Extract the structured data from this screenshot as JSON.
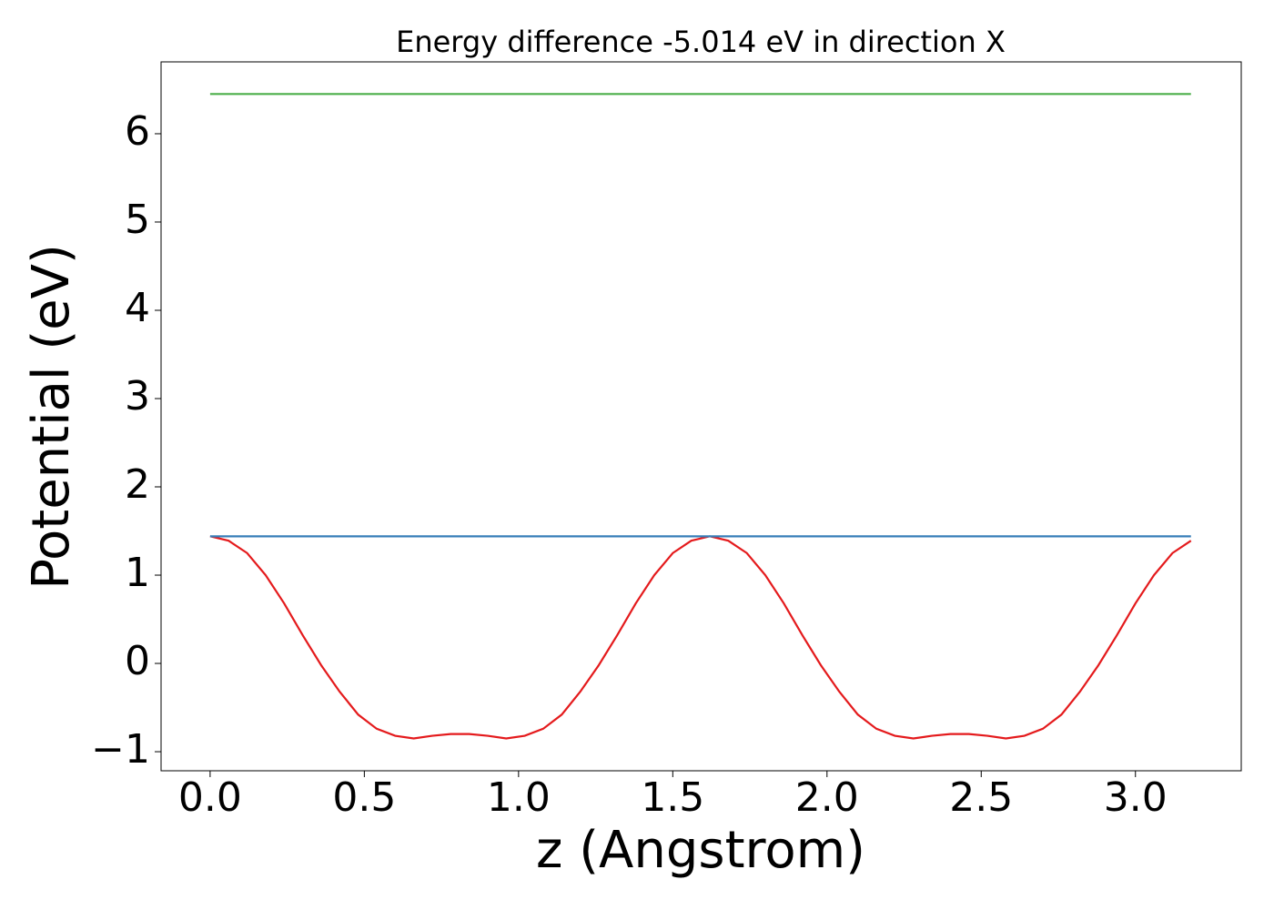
{
  "chart_data": {
    "type": "line",
    "title": "Energy difference -5.014 eV in direction X",
    "x_label": "z (Angstrom)",
    "y_label": "Potential (eV)",
    "series": [
      {
        "color": "#e41a1c",
        "x": [
          0,
          0.06,
          0.12,
          0.18,
          0.24,
          0.3,
          0.36,
          0.42,
          0.48,
          0.54,
          0.6,
          0.66,
          0.72,
          0.78,
          0.84,
          0.9,
          0.96,
          1.02,
          1.08,
          1.14,
          1.2,
          1.26,
          1.32,
          1.38,
          1.44,
          1.5,
          1.56,
          1.62,
          1.68,
          1.74,
          1.8,
          1.86,
          1.92,
          1.98,
          2.04,
          2.1,
          2.16,
          2.22,
          2.28,
          2.34,
          2.4,
          2.46,
          2.52,
          2.58,
          2.64,
          2.7,
          2.76,
          2.82,
          2.88,
          2.94,
          3.0,
          3.06,
          3.12,
          3.18
        ],
        "values": [
          1.44,
          1.39,
          1.25,
          1.0,
          0.68,
          0.32,
          -0.02,
          -0.32,
          -0.58,
          -0.74,
          -0.82,
          -0.85,
          -0.82,
          -0.8,
          -0.8,
          -0.82,
          -0.85,
          -0.82,
          -0.74,
          -0.58,
          -0.32,
          -0.02,
          0.32,
          0.68,
          1.0,
          1.25,
          1.39,
          1.44,
          1.39,
          1.25,
          1.0,
          0.68,
          0.32,
          -0.02,
          -0.32,
          -0.58,
          -0.74,
          -0.82,
          -0.85,
          -0.82,
          -0.8,
          -0.8,
          -0.82,
          -0.85,
          -0.82,
          -0.74,
          -0.58,
          -0.32,
          -0.02,
          0.32,
          0.68,
          1.0,
          1.25,
          1.39
        ]
      },
      {
        "color": "#377eb8",
        "x": [
          0,
          3.18
        ],
        "values": [
          1.44,
          1.44
        ]
      },
      {
        "color": "#4daf4a",
        "x": [
          0,
          3.18
        ],
        "values": [
          6.45,
          6.45
        ]
      }
    ],
    "xlim": [
      -0.159,
      3.343
    ],
    "ylim": [
      -1.216,
      6.814
    ],
    "xticks": [
      {
        "value": 0,
        "label": "0.0"
      },
      {
        "value": 0.5,
        "label": "0.5"
      },
      {
        "value": 1,
        "label": "1.0"
      },
      {
        "value": 1.5,
        "label": "1.5"
      },
      {
        "value": 2,
        "label": "2.0"
      },
      {
        "value": 2.5,
        "label": "2.5"
      },
      {
        "value": 3,
        "label": "3.0"
      }
    ],
    "yticks": [
      {
        "value": -1,
        "label": "−1"
      },
      0,
      1,
      2,
      3,
      4,
      5,
      6
    ]
  }
}
